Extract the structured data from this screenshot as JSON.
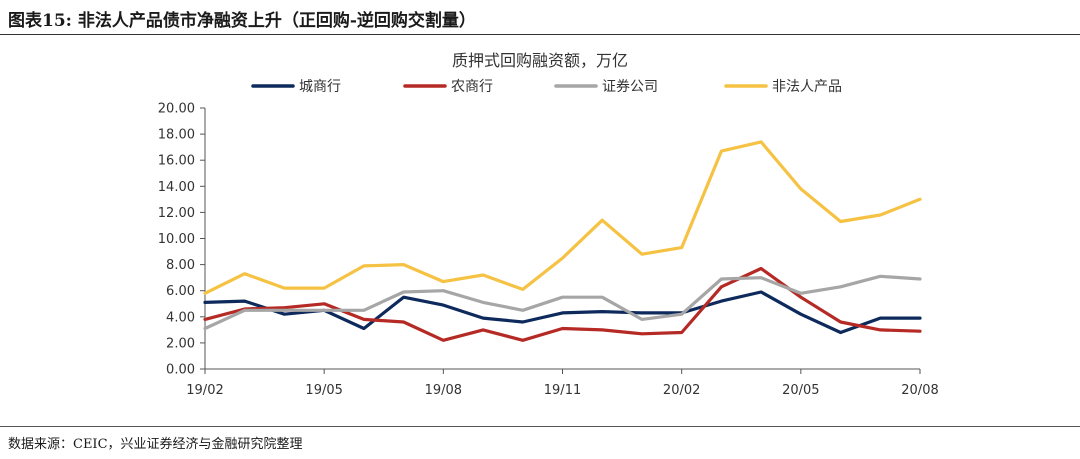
{
  "figure": {
    "title": "图表15:  非法人产品债市净融资上升（正回购-逆回购交割量）",
    "source": "数据来源：CEIC，兴业证券经济与金融研究院整理"
  },
  "chart_data": {
    "type": "line",
    "title": "质押式回购融资额，万亿",
    "xlabel": "",
    "ylabel": "",
    "ylim": [
      0,
      20
    ],
    "yticks": [
      "0.00",
      "2.00",
      "4.00",
      "6.00",
      "8.00",
      "10.00",
      "12.00",
      "14.00",
      "16.00",
      "18.00",
      "20.00"
    ],
    "xticks": [
      "19/02",
      "19/05",
      "19/08",
      "19/11",
      "20/02",
      "20/05",
      "20/08"
    ],
    "x": [
      "19/02",
      "19/03",
      "19/04",
      "19/05",
      "19/06",
      "19/07",
      "19/08",
      "19/09",
      "19/10",
      "19/11",
      "19/12",
      "20/01",
      "20/02",
      "20/03",
      "20/04",
      "20/05",
      "20/06",
      "20/07",
      "20/08"
    ],
    "legend_position": "top",
    "grid": false,
    "series": [
      {
        "name": "城商行",
        "color": "#0e2a5c",
        "values": [
          5.1,
          5.2,
          4.2,
          4.5,
          3.1,
          5.5,
          4.9,
          3.9,
          3.6,
          4.3,
          4.4,
          4.3,
          4.3,
          5.2,
          5.9,
          4.2,
          2.8,
          3.9,
          3.9
        ]
      },
      {
        "name": "农商行",
        "color": "#b52a25",
        "values": [
          3.8,
          4.6,
          4.7,
          5.0,
          3.8,
          3.6,
          2.2,
          3.0,
          2.2,
          3.1,
          3.0,
          2.7,
          2.8,
          6.3,
          7.7,
          5.5,
          3.6,
          3.0,
          2.9
        ]
      },
      {
        "name": "证券公司",
        "color": "#a6a6a6",
        "values": [
          3.1,
          4.5,
          4.5,
          4.5,
          4.5,
          5.9,
          6.0,
          5.1,
          4.5,
          5.5,
          5.5,
          3.8,
          4.2,
          6.9,
          7.0,
          5.8,
          6.3,
          7.1,
          6.9
        ]
      },
      {
        "name": "非法人产品",
        "color": "#f5c243",
        "values": [
          5.8,
          7.3,
          6.2,
          6.2,
          7.9,
          8.0,
          6.7,
          7.2,
          6.1,
          8.5,
          11.4,
          8.8,
          9.3,
          16.7,
          17.4,
          13.8,
          11.3,
          11.8,
          13.0
        ]
      }
    ]
  }
}
